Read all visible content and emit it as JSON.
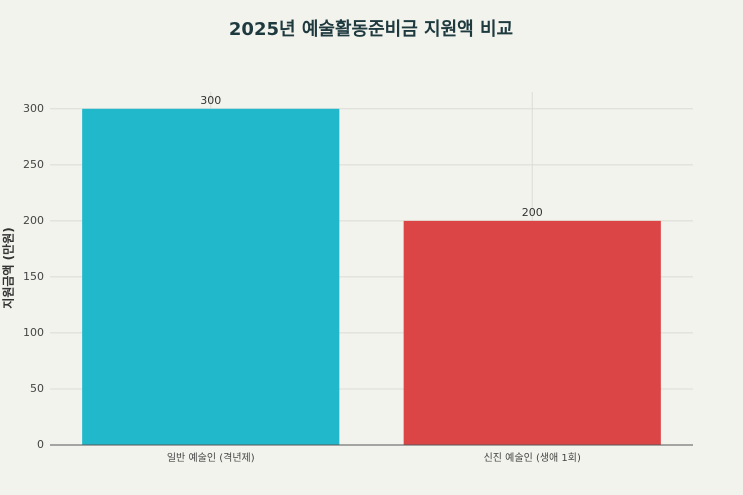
{
  "chart_data": {
    "type": "bar",
    "title": "2025년 예술활동준비금 지원액 비교",
    "y_label": "지원금액 (만원)",
    "categories": [
      "일반 예술인 (격년제)",
      "신진 예술인 (생애 1회)"
    ],
    "values": [
      300,
      200
    ],
    "colors": [
      "#21b8cc",
      "#db4546"
    ],
    "ylim": [
      0,
      315
    ],
    "yticks": [
      0,
      50,
      100,
      150,
      200,
      250,
      300
    ],
    "grid": true
  }
}
